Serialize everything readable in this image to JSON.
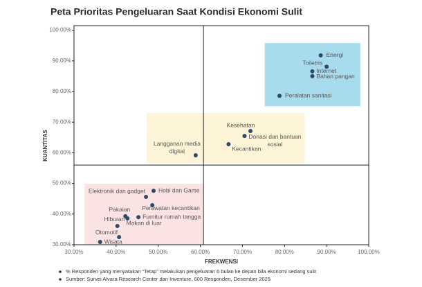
{
  "chart_data": {
    "type": "scatter",
    "title": "Peta Prioritas Pengeluaran Saat Kondisi Ekonomi Sulit",
    "x_label": "FREKWENSI",
    "y_label": "KUANTITAS",
    "color": "#2e4a6b",
    "xlim": [
      30,
      100
    ],
    "ylim": [
      30,
      101.5
    ],
    "xticks": [
      {
        "value": 30,
        "label": "30.00%"
      },
      {
        "value": 40,
        "label": "40.00%"
      },
      {
        "value": 50,
        "label": "50.00%"
      },
      {
        "value": 60,
        "label": "60.00%"
      },
      {
        "value": 70,
        "label": "70.00%"
      },
      {
        "value": 80,
        "label": "80.00%"
      },
      {
        "value": 90,
        "label": "90.00%"
      },
      {
        "value": 100,
        "label": "100.00%"
      }
    ],
    "yticks": [
      {
        "value": 30,
        "label": "30.00%"
      },
      {
        "value": 40,
        "label": "40.00%"
      },
      {
        "value": 50,
        "label": "50.00%"
      },
      {
        "value": 60,
        "label": "60.00%"
      },
      {
        "value": 70,
        "label": "70.00%"
      },
      {
        "value": 80,
        "label": "80.00%"
      },
      {
        "value": 90,
        "label": "90.00%"
      },
      {
        "value": 100,
        "label": "100.00%"
      }
    ],
    "divider_x": 60.75,
    "divider_y": 56,
    "zones": [
      {
        "x": [
          75.3,
          98
        ],
        "y": [
          75.2,
          95.8
        ],
        "color": "#a9dbee"
      },
      {
        "x": [
          47.3,
          84.8
        ],
        "y": [
          56.7,
          73
        ],
        "color": "#fdf3d7"
      },
      {
        "x": [
          32.5,
          60.6
        ],
        "y": [
          30,
          49.9
        ],
        "color": "#fbe3e4"
      }
    ],
    "labels": [
      "Energi",
      "Toiletris",
      "Internet",
      "Bahan pangan",
      "Peralatan sanitasi",
      "Kesehatan",
      "Donasi dan bantuan sosial",
      "Kecantikan",
      "Langganan media digital",
      "Hobi dan Game",
      "Elektronik dan gadget",
      "Perawatan kecantikan",
      "Pakaian",
      "Furnitur rumah tangga",
      "Hiburan",
      "Makan di luar",
      "Otomotif",
      "Wisata"
    ],
    "x": [
      88.6,
      90,
      86.6,
      86.6,
      78.8,
      71.9,
      70.5,
      66.7,
      58.9,
      48.9,
      47.1,
      48.6,
      42.2,
      45.3,
      42.7,
      40.3,
      40.7,
      36.2
    ],
    "y": [
      91.8,
      88.1,
      86.6,
      85,
      78.6,
      67.1,
      65.5,
      62.8,
      59.2,
      47.6,
      45.6,
      42.9,
      39.3,
      39,
      38.6,
      36.1,
      32.5,
      30.9
    ],
    "notes": [
      "% Responden yang menyatakan “Tetap” melakukan pengeluaran 6 bulan ke depan bila ekonomi sedang sulit",
      "Sumber: Survei Alvara Research Center dan Inventure, 600 Responden, Desember 2025"
    ]
  }
}
